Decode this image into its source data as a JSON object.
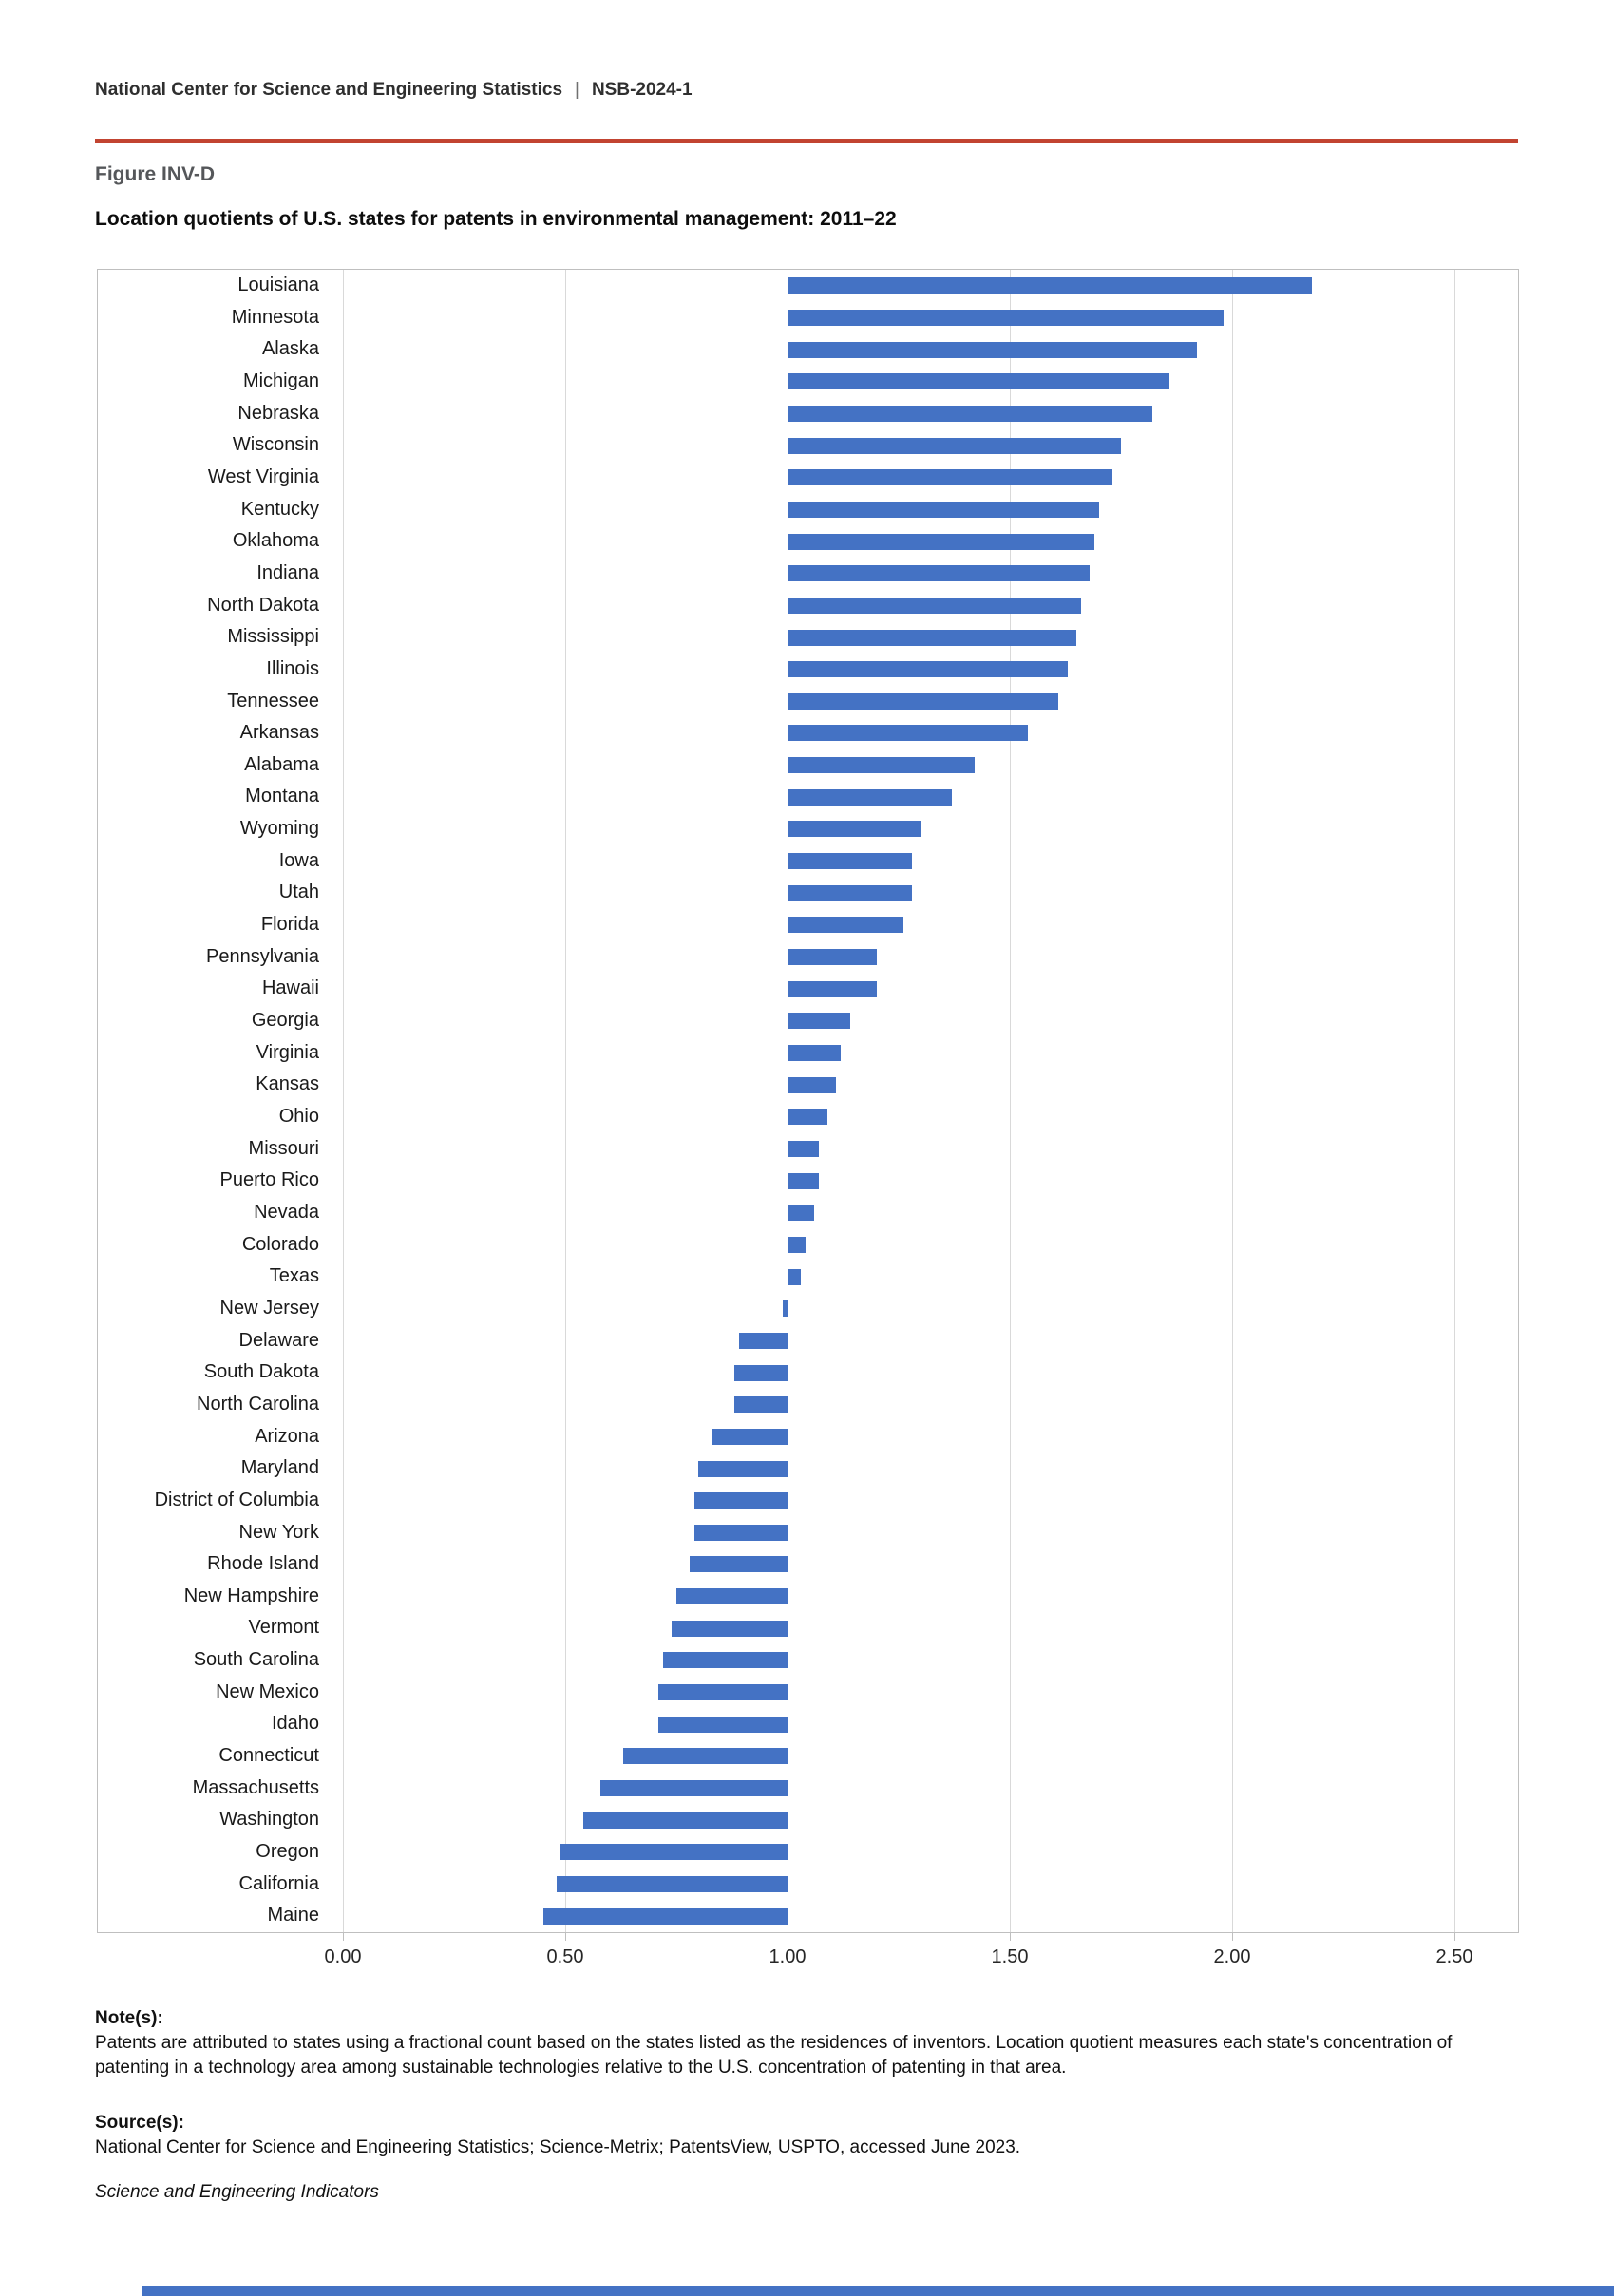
{
  "header": {
    "org": "National Center for Science and Engineering Statistics",
    "separator": "|",
    "report_id": "NSB-2024-1"
  },
  "figure": {
    "label": "Figure INV-D",
    "title": "Location quotients of U.S. states for patents in environmental management: 2011–22"
  },
  "chart_data": {
    "type": "bar",
    "orientation": "horizontal",
    "title": "Location quotients of U.S. states for patents in environmental management: 2011–22",
    "xlabel": "",
    "ylabel": "",
    "xlim": [
      0.0,
      2.5
    ],
    "baseline": 1.0,
    "grid": true,
    "bar_color": "#4472C4",
    "x_ticks": [
      0.0,
      0.5,
      1.0,
      1.5,
      2.0,
      2.5
    ],
    "x_tick_labels": [
      "0.00",
      "0.50",
      "1.00",
      "1.50",
      "2.00",
      "2.50"
    ],
    "categories": [
      "Louisiana",
      "Minnesota",
      "Alaska",
      "Michigan",
      "Nebraska",
      "Wisconsin",
      "West Virginia",
      "Kentucky",
      "Oklahoma",
      "Indiana",
      "North Dakota",
      "Mississippi",
      "Illinois",
      "Tennessee",
      "Arkansas",
      "Alabama",
      "Montana",
      "Wyoming",
      "Iowa",
      "Utah",
      "Florida",
      "Pennsylvania",
      "Hawaii",
      "Georgia",
      "Virginia",
      "Kansas",
      "Ohio",
      "Missouri",
      "Puerto Rico",
      "Nevada",
      "Colorado",
      "Texas",
      "New Jersey",
      "Delaware",
      "South Dakota",
      "North Carolina",
      "Arizona",
      "Maryland",
      "District of Columbia",
      "New York",
      "Rhode Island",
      "New Hampshire",
      "Vermont",
      "South Carolina",
      "New Mexico",
      "Idaho",
      "Connecticut",
      "Massachusetts",
      "Washington",
      "Oregon",
      "California",
      "Maine"
    ],
    "values": [
      2.18,
      1.98,
      1.92,
      1.86,
      1.82,
      1.75,
      1.73,
      1.7,
      1.69,
      1.68,
      1.66,
      1.65,
      1.63,
      1.61,
      1.54,
      1.42,
      1.37,
      1.3,
      1.28,
      1.28,
      1.26,
      1.2,
      1.2,
      1.14,
      1.12,
      1.11,
      1.09,
      1.07,
      1.07,
      1.06,
      1.04,
      1.03,
      0.99,
      0.89,
      0.88,
      0.88,
      0.83,
      0.8,
      0.79,
      0.79,
      0.78,
      0.75,
      0.74,
      0.72,
      0.71,
      0.71,
      0.63,
      0.58,
      0.54,
      0.49,
      0.48,
      0.45
    ],
    "legend": null
  },
  "notes": {
    "heading": "Note(s):",
    "body": "Patents are attributed to states using a fractional count based on the states listed as the residences of inventors. Location quotient measures each state's concentration of patenting in a technology area among sustainable technologies relative to the U.S. concentration of patenting in that area."
  },
  "source": {
    "heading": "Source(s):",
    "body": "National Center for Science and Engineering Statistics; Science-Metrix; PatentsView, USPTO, accessed June 2023."
  },
  "footer_note": "Science and Engineering Indicators",
  "colors": {
    "bar": "#4472C4",
    "rule": "#C24431",
    "grid": "#D9D9D9",
    "chart_border": "#BFBFBF",
    "figure_label": "#55575A",
    "footer_bar": "#4472C4"
  }
}
